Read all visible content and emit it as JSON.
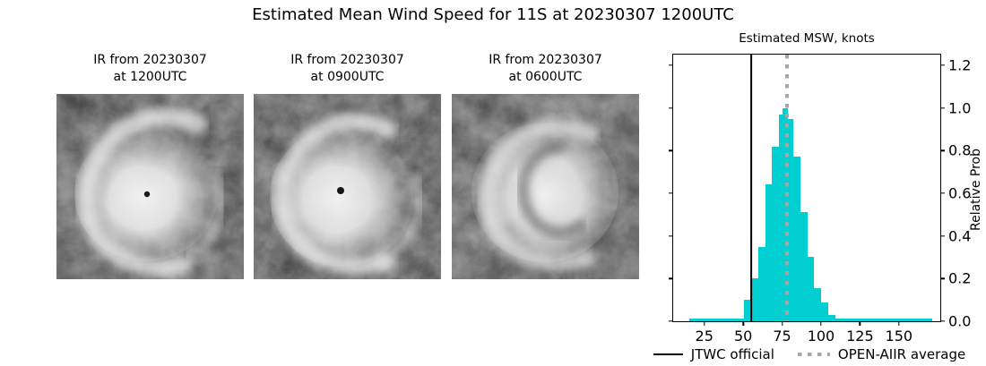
{
  "title": "Estimated Mean Wind Speed for 11S at 20230307 1200UTC",
  "panels": [
    {
      "title_line1": "IR from 20230307",
      "title_line2": "at 1200UTC"
    },
    {
      "title_line1": "IR from 20230307",
      "title_line2": "at 0900UTC"
    },
    {
      "title_line1": "IR from 20230307",
      "title_line2": "at 0600UTC"
    }
  ],
  "chart_data": {
    "type": "bar",
    "title": "Estimated MSW, knots",
    "xlabel": "",
    "ylabel": "Relative Prob",
    "xlim": [
      5,
      176.6
    ],
    "ylim": [
      0,
      1.25
    ],
    "grid": false,
    "legend_position": "bottom",
    "x_ticks": [
      25,
      50,
      75,
      100,
      125,
      150
    ],
    "x_tick_labels": [
      "25",
      "50",
      "75",
      "100",
      "125",
      "150"
    ],
    "y_ticks": [
      0,
      0.2,
      0.4,
      0.6,
      0.8,
      1.0,
      1.2
    ],
    "y_tick_labels": [
      "0.0",
      "0.2",
      "0.4",
      "0.6",
      "0.8",
      "1.0",
      "1.2"
    ],
    "bar_color": "#00CED1",
    "jtwc_line_color": "#000000",
    "openaiir_line_color": "#a6a6a6",
    "bars": [
      {
        "x0": 50.6,
        "x1": 55.1,
        "h": 0.1
      },
      {
        "x0": 55.1,
        "x1": 59.6,
        "h": 0.2
      },
      {
        "x0": 59.6,
        "x1": 64.1,
        "h": 0.35
      },
      {
        "x0": 64.1,
        "x1": 68.6,
        "h": 0.64
      },
      {
        "x0": 68.6,
        "x1": 73.1,
        "h": 0.82
      },
      {
        "x0": 73.1,
        "x1": 77.6,
        "h": 0.97
      },
      {
        "x0": 75.3,
        "x1": 78.8,
        "h": 1.0
      },
      {
        "x0": 77.6,
        "x1": 82.1,
        "h": 0.95
      },
      {
        "x0": 82.1,
        "x1": 86.6,
        "h": 0.77
      },
      {
        "x0": 86.6,
        "x1": 91.1,
        "h": 0.51
      },
      {
        "x0": 91.1,
        "x1": 95.6,
        "h": 0.3
      },
      {
        "x0": 95.6,
        "x1": 100.1,
        "h": 0.155
      },
      {
        "x0": 100.1,
        "x1": 104.6,
        "h": 0.09
      },
      {
        "x0": 104.6,
        "x1": 109.1,
        "h": 0.03
      }
    ],
    "baseline_bar": {
      "x0": 15.5,
      "x1": 171.5,
      "h": 0.012
    },
    "jtwc_official": 55,
    "openaiir_average": 78.4,
    "legend": [
      {
        "label": "JTWC official",
        "style": "solid"
      },
      {
        "label": "OPEN-AIIR average",
        "style": "dotted"
      }
    ]
  }
}
